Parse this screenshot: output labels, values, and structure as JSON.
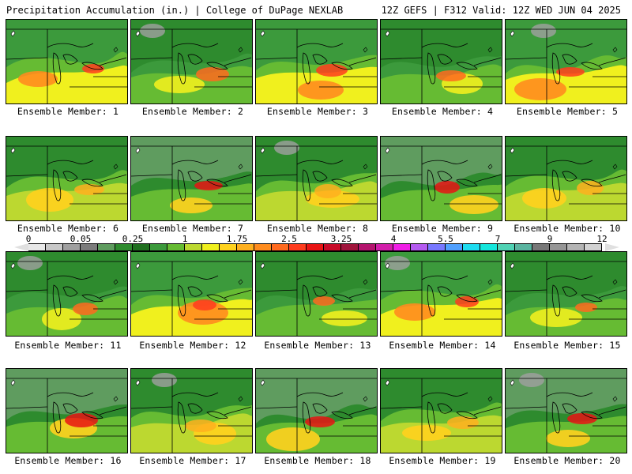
{
  "header": {
    "left": "Precipitation Accumulation (in.) | College of DuPage NEXLAB",
    "right": "12Z GEFS | F312 Valid: 12Z WED JUN 04 2025"
  },
  "colorbar": {
    "labels": [
      "0",
      "0.05",
      "0.25",
      "1",
      "1.75",
      "2.5",
      "3.25",
      "4",
      "5.5",
      "7",
      "9",
      "12"
    ],
    "colors": [
      "#e8e8e8",
      "#c8c8c8",
      "#a0a0a0",
      "#7c7c7c",
      "#5f9c5f",
      "#2e8b2e",
      "#1f6f1f",
      "#3c9a3c",
      "#66bb33",
      "#bcd830",
      "#f0f01e",
      "#ffd21e",
      "#ffb01e",
      "#ff8c1e",
      "#ff6a1e",
      "#ff3c1e",
      "#e81414",
      "#c80a28",
      "#a0143c",
      "#b4146e",
      "#d21eaa",
      "#f01ee6",
      "#b45af0",
      "#7878ff",
      "#50a0ff",
      "#1edcf0",
      "#14e6dc",
      "#50d2b4",
      "#5ab4a0",
      "#787878",
      "#969696",
      "#b4b4b4",
      "#d2d2d2"
    ]
  },
  "members": [
    {
      "label": "Ensemble Member: 1"
    },
    {
      "label": "Ensemble Member: 2"
    },
    {
      "label": "Ensemble Member: 3"
    },
    {
      "label": "Ensemble Member: 4"
    },
    {
      "label": "Ensemble Member: 5"
    },
    {
      "label": "Ensemble Member: 6"
    },
    {
      "label": "Ensemble Member: 7"
    },
    {
      "label": "Ensemble Member: 8"
    },
    {
      "label": "Ensemble Member: 9"
    },
    {
      "label": "Ensemble Member: 10"
    },
    {
      "label": "Ensemble Member: 11"
    },
    {
      "label": "Ensemble Member: 12"
    },
    {
      "label": "Ensemble Member: 13"
    },
    {
      "label": "Ensemble Member: 14"
    },
    {
      "label": "Ensemble Member: 15"
    },
    {
      "label": "Ensemble Member: 16"
    },
    {
      "label": "Ensemble Member: 17"
    },
    {
      "label": "Ensemble Member: 18"
    },
    {
      "label": "Ensemble Member: 19"
    },
    {
      "label": "Ensemble Member: 20"
    }
  ]
}
